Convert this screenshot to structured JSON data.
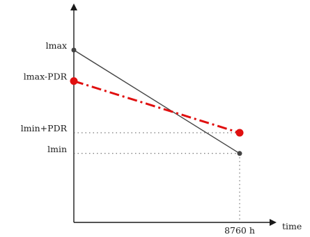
{
  "chart_data": {
    "type": "line",
    "title": "",
    "xlabel": "time",
    "ylabel": "",
    "x_tick_labels": [
      "8760 h"
    ],
    "y_tick_labels": [
      {
        "key": "lmax",
        "label": "lmax"
      },
      {
        "key": "lmax_pdr",
        "label": "lmax-PDR"
      },
      {
        "key": "lmin_pdr",
        "label": "lmin+PDR"
      },
      {
        "key": "lmin",
        "label": "lmin"
      }
    ],
    "y_levels": {
      "lmax": 5.0,
      "lmax_pdr": 4.1,
      "lmin_pdr": 2.6,
      "lmin": 2.0
    },
    "x_range": [
      0,
      8760
    ],
    "series": [
      {
        "key": "base",
        "style": "solid",
        "color": "#444444",
        "points": [
          {
            "x": 0,
            "y": 5.0
          },
          {
            "x": 8760,
            "y": 2.0
          }
        ]
      },
      {
        "key": "pdr",
        "style": "dash-dot",
        "color": "#e01010",
        "points": [
          {
            "x": 0,
            "y": 4.1
          },
          {
            "x": 8760,
            "y": 2.6
          }
        ]
      }
    ],
    "grid": false
  }
}
